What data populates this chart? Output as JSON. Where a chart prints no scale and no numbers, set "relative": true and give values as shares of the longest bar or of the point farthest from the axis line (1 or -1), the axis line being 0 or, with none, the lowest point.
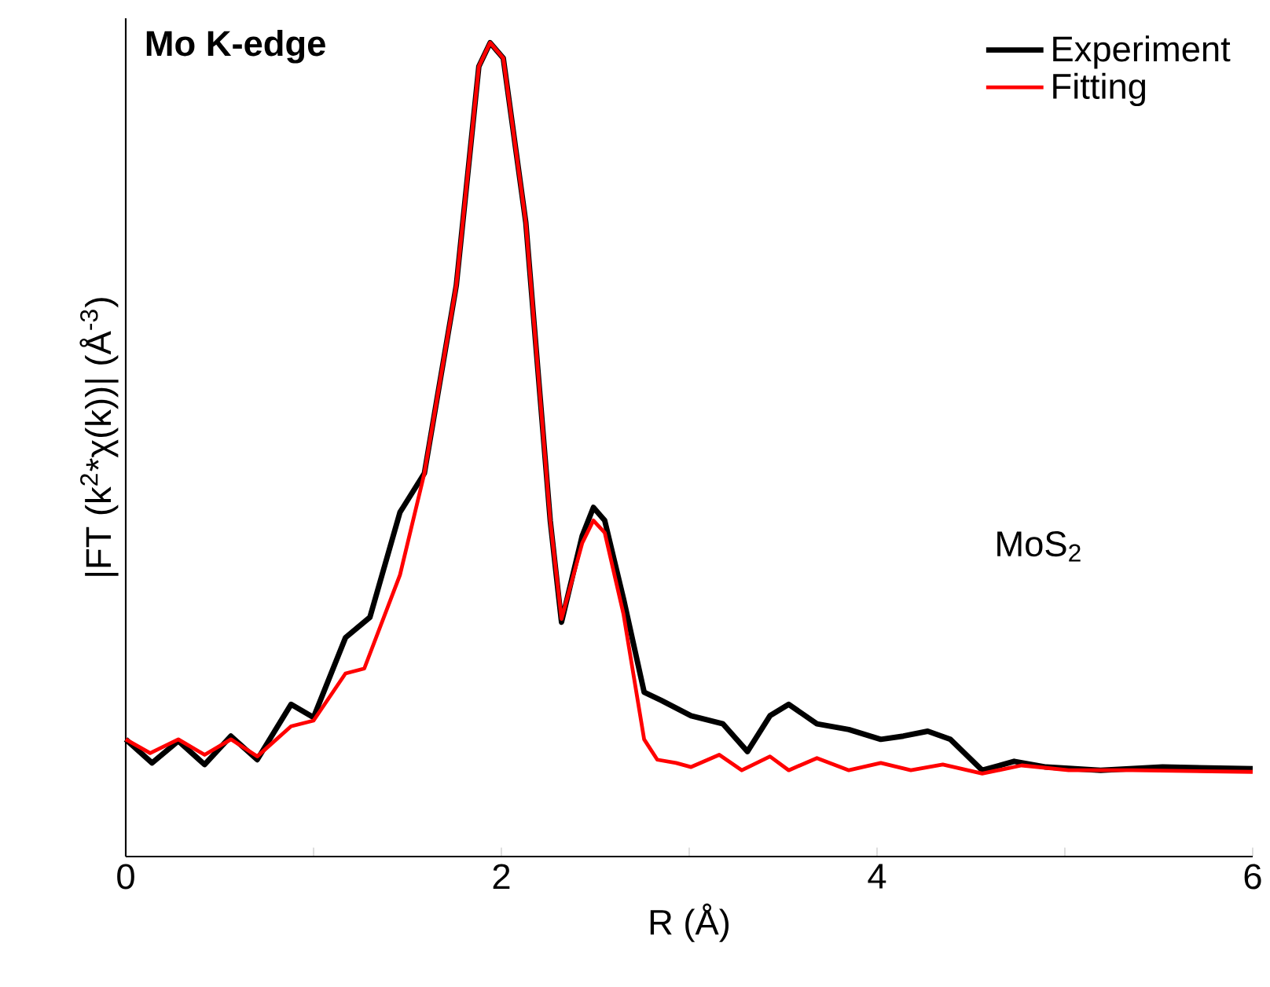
{
  "chart_data": {
    "type": "line",
    "title": "Mo K-edge",
    "xlabel": "R (Å)",
    "ylabel": "|FT (k$^{2}$*χ(k))| (Å$^{-3}$)",
    "relative": true,
    "xlim": [
      0,
      6
    ],
    "xticks": [
      0,
      {
        "value": 1,
        "label": null
      },
      2,
      {
        "value": 3,
        "label": null
      },
      4,
      {
        "value": 5,
        "label": null
      },
      6
    ],
    "annotations": [
      "MoS$_{2}$"
    ],
    "legend": "top right",
    "grid": false,
    "marker": "none",
    "line_style": "solid",
    "series": [
      {
        "name": "Experiment",
        "color": "#000000",
        "x": [
          0,
          0.14,
          0.28,
          0.42,
          0.56,
          0.7,
          0.88,
          1.0,
          1.17,
          1.3,
          1.46,
          1.59,
          1.76,
          1.88,
          1.94,
          2.01,
          2.13,
          2.26,
          2.32,
          2.43,
          2.49,
          2.55,
          2.65,
          2.76,
          2.85,
          3.01,
          3.18,
          3.31,
          3.43,
          3.53,
          3.68,
          3.85,
          4.02,
          4.14,
          4.27,
          4.39,
          4.56,
          4.73,
          4.9,
          5.19,
          5.52,
          6.0
        ],
        "values": [
          0.144,
          0.115,
          0.142,
          0.113,
          0.148,
          0.119,
          0.187,
          0.171,
          0.269,
          0.294,
          0.423,
          0.471,
          0.702,
          0.971,
          1,
          0.981,
          0.779,
          0.413,
          0.288,
          0.394,
          0.429,
          0.413,
          0.317,
          0.202,
          0.192,
          0.173,
          0.163,
          0.129,
          0.173,
          0.187,
          0.163,
          0.156,
          0.144,
          0.148,
          0.154,
          0.144,
          0.106,
          0.117,
          0.11,
          0.106,
          0.11,
          0.108
        ]
      },
      {
        "name": "Fitting",
        "color": "#ff0000",
        "x": [
          0,
          0.13,
          0.28,
          0.42,
          0.56,
          0.7,
          0.88,
          1.0,
          1.17,
          1.27,
          1.46,
          1.59,
          1.76,
          1.88,
          1.94,
          2.01,
          2.13,
          2.26,
          2.32,
          2.43,
          2.49,
          2.55,
          2.65,
          2.76,
          2.83,
          2.93,
          3.01,
          3.16,
          3.28,
          3.43,
          3.53,
          3.68,
          3.85,
          4.02,
          4.18,
          4.35,
          4.56,
          4.77,
          5.02,
          5.36,
          6.0
        ],
        "values": [
          0.144,
          0.127,
          0.144,
          0.125,
          0.144,
          0.123,
          0.16,
          0.167,
          0.225,
          0.231,
          0.346,
          0.471,
          0.702,
          0.971,
          1,
          0.981,
          0.779,
          0.413,
          0.292,
          0.385,
          0.413,
          0.398,
          0.298,
          0.144,
          0.119,
          0.115,
          0.11,
          0.125,
          0.106,
          0.123,
          0.106,
          0.121,
          0.106,
          0.115,
          0.106,
          0.113,
          0.102,
          0.112,
          0.106,
          0.106,
          0.104
        ]
      }
    ]
  }
}
